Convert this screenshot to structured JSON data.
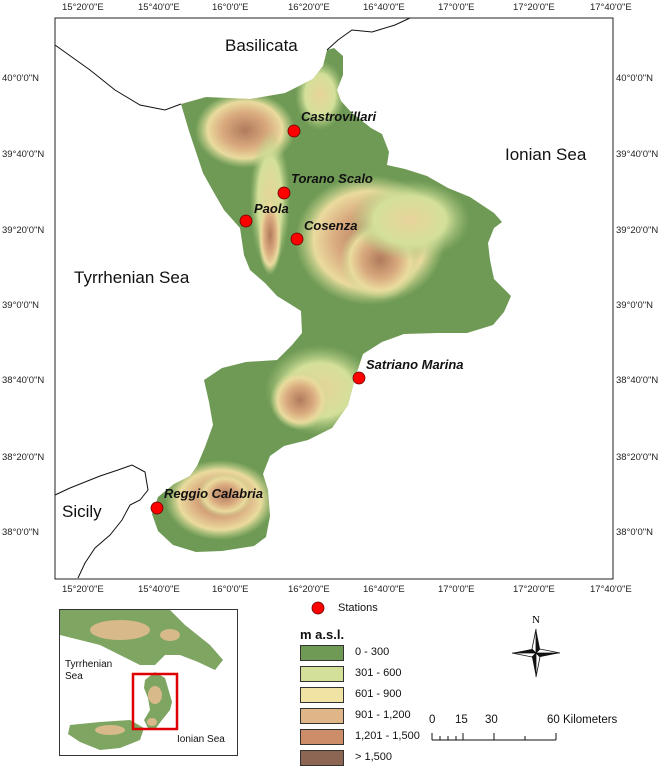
{
  "map": {
    "top_ticks": [
      "15°20'0\"E",
      "15°40'0\"E",
      "16°0'0\"E",
      "16°20'0\"E",
      "16°40'0\"E",
      "17°0'0\"E",
      "17°20'0\"E",
      "17°40'0\"E"
    ],
    "bottom_ticks": [
      "15°20'0\"E",
      "15°40'0\"E",
      "16°0'0\"E",
      "16°20'0\"E",
      "16°40'0\"E",
      "17°0'0\"E",
      "17°20'0\"E",
      "17°40'0\"E"
    ],
    "left_ticks": [
      "40°0'0\"N",
      "39°40'0\"N",
      "39°20'0\"N",
      "39°0'0\"N",
      "38°40'0\"N",
      "38°20'0\"N",
      "38°0'0\"N"
    ],
    "right_ticks": [
      "40°0'0\"N",
      "39°40'0\"N",
      "39°20'0\"N",
      "39°0'0\"N",
      "38°40'0\"N",
      "38°20'0\"N",
      "38°0'0\"N"
    ],
    "region_labels": {
      "basilicata": "Basilicata",
      "ionian": "Ionian Sea",
      "tyrrhenian": "Tyrrhenian Sea",
      "sicily": "Sicily"
    },
    "stations": [
      "Castrovillari",
      "Torano Scalo",
      "Paola",
      "Cosenza",
      "Satriano Marina",
      "Reggio Calabria"
    ],
    "colors": {
      "low": "#6f9a55",
      "mid1": "#c9dc95",
      "mid2": "#efe3a3",
      "mid3": "#ddb486",
      "mid4": "#c98a66",
      "high": "#8c6553",
      "station": "#ff0000",
      "inset_frame": "#e00000"
    }
  },
  "legend": {
    "stations_label": "Stations",
    "title": "m a.s.l.",
    "classes": [
      "0 - 300",
      "301 - 600",
      "601 - 900",
      "901 - 1,200",
      "1,201 - 1,500",
      "> 1,500"
    ]
  },
  "inset": {
    "tyrrhenian": "Tyrrhenian\nSea",
    "ionian": "Ionian Sea"
  },
  "north_label": "N",
  "scale": {
    "labels": [
      "0",
      "15",
      "30",
      "60 Kilometers"
    ]
  }
}
